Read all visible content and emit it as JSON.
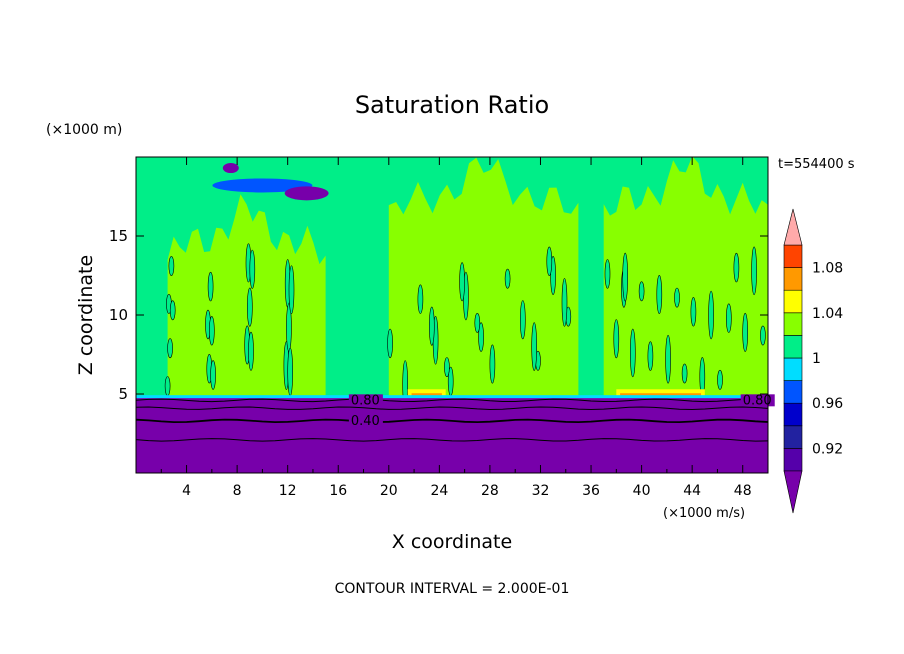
{
  "chart_data": {
    "type": "heatmap",
    "title": "Saturation Ratio",
    "xlabel": "X coordinate",
    "ylabel": "Z coordinate",
    "x_unit": "(×1000 m/s)",
    "y_unit": "(×1000 m)",
    "time_label": "t=554400 s",
    "footer": "CONTOUR INTERVAL = 2.000E-01",
    "xlim": [
      0,
      50
    ],
    "ylim": [
      0,
      20
    ],
    "xticks": [
      4,
      8,
      12,
      16,
      20,
      24,
      28,
      32,
      36,
      40,
      44,
      48
    ],
    "yticks": [
      5,
      10,
      15
    ],
    "contour_labels": [
      {
        "text": "0.80",
        "x": 17,
        "z": 4.6
      },
      {
        "text": "0.40",
        "x": 17,
        "z": 3.3
      },
      {
        "text": "0.80",
        "x": 48,
        "z": 4.6
      }
    ],
    "colorbar": {
      "levels": [
        0.9,
        0.92,
        0.94,
        0.96,
        0.98,
        1.0,
        1.02,
        1.04,
        1.06,
        1.08,
        1.1
      ],
      "colors": [
        "#5500aa",
        "#2222a0",
        "#0000cc",
        "#0055ff",
        "#00ddff",
        "#00ee88",
        "#88ff00",
        "#ffff00",
        "#ff9900",
        "#ff4400",
        "#ff2222"
      ],
      "under_color": "#7700aa",
      "over_color": "#ffaaaa",
      "tick_labels": [
        "0.92",
        "0.96",
        "1",
        "1.04",
        "1.08"
      ],
      "tick_values": [
        0.92,
        0.96,
        1.0,
        1.04,
        1.08
      ]
    },
    "regions": {
      "background": "#00ee88",
      "lower_layer_top_z": 4.8,
      "lower_layer_color": "#7700aa",
      "supersaturated_color": "#88ff00"
    }
  }
}
